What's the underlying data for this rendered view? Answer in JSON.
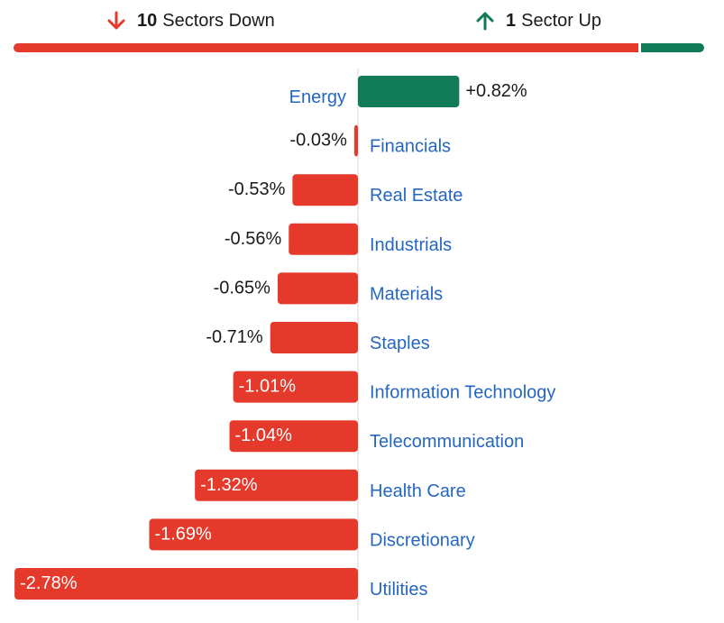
{
  "summary": {
    "down": {
      "count": "10",
      "text": "Sectors Down",
      "icon": "arrow-down-icon",
      "color": "#e5392b"
    },
    "up": {
      "count": "1",
      "text": "Sector Up",
      "icon": "arrow-up-icon",
      "color": "#117a57"
    }
  },
  "colors": {
    "negative": "#e5392b",
    "positive": "#117a57",
    "category_label": "#2466c2"
  },
  "chart_data": {
    "type": "bar",
    "orientation": "horizontal",
    "title": "",
    "xlabel": "",
    "ylabel": "",
    "unit": "%",
    "categories": [
      "Energy",
      "Financials",
      "Real Estate",
      "Industrials",
      "Materials",
      "Staples",
      "Information Technology",
      "Telecommunication",
      "Health Care",
      "Discretionary",
      "Utilities"
    ],
    "values": [
      0.82,
      -0.03,
      -0.53,
      -0.56,
      -0.65,
      -0.71,
      -1.01,
      -1.04,
      -1.32,
      -1.69,
      -2.78
    ],
    "labels": [
      "+0.82%",
      "-0.03%",
      "-0.53%",
      "-0.56%",
      "-0.65%",
      "-0.71%",
      "-1.01%",
      "-1.04%",
      "-1.32%",
      "-1.69%",
      "-2.78%"
    ],
    "grid": false,
    "legend": "none"
  }
}
